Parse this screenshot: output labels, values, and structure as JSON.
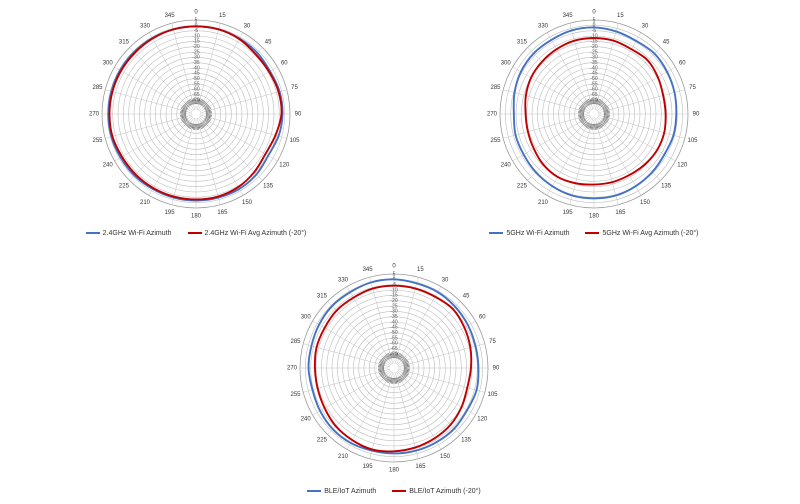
{
  "colors": {
    "primary": "#4472c4",
    "secondary": "#c00000"
  },
  "chart_data": [
    {
      "type": "polar-line",
      "r_ticks": [
        "5",
        "0",
        "-5",
        "-10",
        "-15",
        "-20",
        "-25",
        "-30",
        "-35",
        "-40",
        "-45",
        "-50",
        "-55",
        "-60",
        "-65",
        "-70"
      ],
      "r_range": [
        -70,
        5
      ],
      "angle_ticks": [
        "0",
        "15",
        "30",
        "45",
        "60",
        "75",
        "90",
        "105",
        "120",
        "135",
        "150",
        "165",
        "180",
        "195",
        "210",
        "225",
        "240",
        "255",
        "270",
        "285",
        "300",
        "315",
        "330",
        "345"
      ],
      "series": [
        {
          "name": "2.4GHz Wi-Fi Azimuth",
          "color": "#4472c4",
          "values": [
            -1,
            -1,
            -1.5,
            -2,
            -3,
            -2,
            -2,
            -3,
            -5,
            -3,
            -2,
            -2,
            -2,
            -2,
            -2,
            -1.5,
            -1.5,
            -1,
            -1,
            -1,
            -1,
            -1,
            -1,
            -1
          ]
        },
        {
          "name": "2.4GHz Wi-Fi Avg Azimuth (-20°)",
          "color": "#c00000",
          "values": [
            -1,
            -1,
            -2,
            -4,
            -4,
            -3,
            -3,
            -6,
            -8,
            -6,
            -4,
            -3,
            -3,
            -3,
            -3,
            -3,
            -3,
            -2,
            -2,
            -2,
            -2,
            -2,
            -1.5,
            -1
          ]
        }
      ]
    },
    {
      "type": "polar-line",
      "r_ticks": [
        "5",
        "0",
        "-5",
        "-10",
        "-15",
        "-20",
        "-25",
        "-30",
        "-35",
        "-40",
        "-45",
        "-50",
        "-55",
        "-60",
        "-65",
        "-70"
      ],
      "r_range": [
        -70,
        5
      ],
      "angle_ticks": [
        "0",
        "15",
        "30",
        "45",
        "60",
        "75",
        "90",
        "105",
        "120",
        "135",
        "150",
        "165",
        "180",
        "195",
        "210",
        "225",
        "240",
        "255",
        "270",
        "285",
        "300",
        "315",
        "330",
        "345"
      ],
      "series": [
        {
          "name": "5GHz Wi-Fi Azimuth",
          "color": "#4472c4",
          "values": [
            -2,
            -3,
            -4,
            -3,
            -4,
            -5,
            -6,
            -6,
            -7,
            -6,
            -5,
            -4,
            -4,
            -4,
            -5,
            -6,
            -7,
            -7,
            -8,
            -6,
            -4,
            -3,
            -3,
            -2
          ]
        },
        {
          "name": "5GHz Wi-Fi Avg Azimuth (-20°)",
          "color": "#c00000",
          "values": [
            -12,
            -12,
            -13,
            -12,
            -14,
            -16,
            -16,
            -15,
            -15,
            -16,
            -17,
            -17,
            -17,
            -16,
            -15,
            -16,
            -18,
            -19,
            -19,
            -17,
            -15,
            -14,
            -13,
            -12
          ]
        }
      ]
    },
    {
      "type": "polar-line",
      "r_ticks": [
        "5",
        "0",
        "-5",
        "-10",
        "-15",
        "-20",
        "-25",
        "-30",
        "-35",
        "-40",
        "-45",
        "-50",
        "-55",
        "-60",
        "-65",
        "-70"
      ],
      "r_range": [
        -70,
        5
      ],
      "angle_ticks": [
        "0",
        "15",
        "30",
        "45",
        "60",
        "75",
        "90",
        "105",
        "120",
        "135",
        "150",
        "165",
        "180",
        "195",
        "210",
        "225",
        "240",
        "255",
        "270",
        "285",
        "300",
        "315",
        "330",
        "345"
      ],
      "series": [
        {
          "name": "BLE/IoT Azimuth",
          "color": "#4472c4",
          "values": [
            0,
            -1,
            -1,
            -2,
            -3,
            -4,
            -4,
            -3,
            -4,
            -3,
            -3,
            -3,
            -3,
            -3,
            -2,
            -2,
            -3,
            -4,
            -3,
            -3,
            -2,
            -1,
            -1,
            0
          ]
        },
        {
          "name": "BLE/IoT Azimuth (-20°)",
          "color": "#c00000",
          "values": [
            -6,
            -6,
            -6,
            -5,
            -7,
            -9,
            -11,
            -12,
            -10,
            -8,
            -7,
            -6,
            -5,
            -4,
            -5,
            -6,
            -8,
            -9,
            -9,
            -8,
            -8,
            -7,
            -7,
            -6
          ]
        }
      ]
    }
  ]
}
